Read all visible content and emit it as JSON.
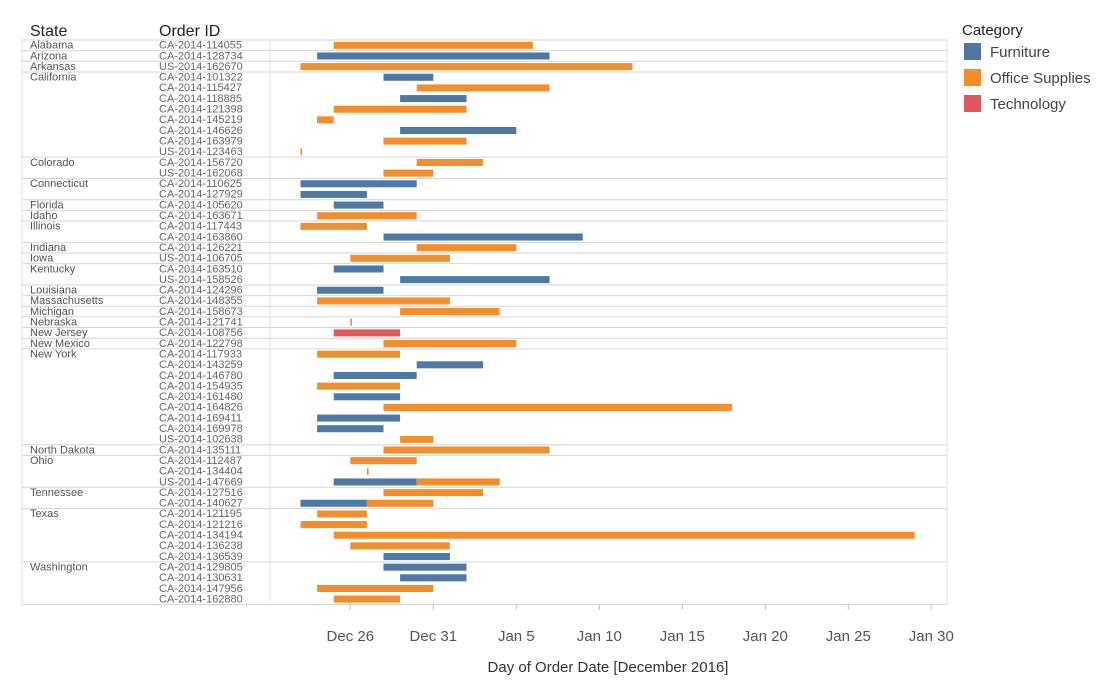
{
  "chart_data": {
    "type": "gantt",
    "headers": {
      "state": "State",
      "order": "Order ID"
    },
    "xlabel": "Day of Order Date [December 2016]",
    "x_ticks": [
      {
        "label": "Dec 26",
        "day": 26
      },
      {
        "label": "Dec 31",
        "day": 31
      },
      {
        "label": "Jan 5",
        "day": 36
      },
      {
        "label": "Jan 10",
        "day": 41
      },
      {
        "label": "Jan 15",
        "day": 46
      },
      {
        "label": "Jan 20",
        "day": 51
      },
      {
        "label": "Jan 25",
        "day": 56
      },
      {
        "label": "Jan 30",
        "day": 61
      }
    ],
    "xlim": [
      21.5,
      62
    ],
    "legend": {
      "title": "Category",
      "items": [
        {
          "name": "Furniture",
          "color": "#4e79a7"
        },
        {
          "name": "Office Supplies",
          "color": "#f28e2b"
        },
        {
          "name": "Technology",
          "color": "#e15759"
        }
      ]
    },
    "groups": [
      {
        "state": "Alabama",
        "rows": [
          {
            "order": "CA-2014-114055",
            "segments": [
              {
                "category": "Office Supplies",
                "start": 25,
                "end": 37
              }
            ]
          }
        ]
      },
      {
        "state": "Arizona",
        "rows": [
          {
            "order": "CA-2014-128734",
            "segments": [
              {
                "category": "Furniture",
                "start": 24,
                "end": 38
              }
            ]
          }
        ]
      },
      {
        "state": "Arkansas",
        "rows": [
          {
            "order": "US-2014-162670",
            "segments": [
              {
                "category": "Office Supplies",
                "start": 23,
                "end": 43
              }
            ]
          }
        ]
      },
      {
        "state": "California",
        "rows": [
          {
            "order": "CA-2014-101322",
            "segments": [
              {
                "category": "Furniture",
                "start": 28,
                "end": 31
              }
            ]
          },
          {
            "order": "CA-2014-115427",
            "segments": [
              {
                "category": "Office Supplies",
                "start": 30,
                "end": 38
              }
            ]
          },
          {
            "order": "CA-2014-118885",
            "segments": [
              {
                "category": "Furniture",
                "start": 29,
                "end": 33
              }
            ]
          },
          {
            "order": "CA-2014-121398",
            "segments": [
              {
                "category": "Office Supplies",
                "start": 25,
                "end": 33
              }
            ]
          },
          {
            "order": "CA-2014-145219",
            "segments": [
              {
                "category": "Office Supplies",
                "start": 24,
                "end": 25
              }
            ]
          },
          {
            "order": "CA-2014-146626",
            "segments": [
              {
                "category": "Furniture",
                "start": 29,
                "end": 36
              }
            ]
          },
          {
            "order": "CA-2014-163979",
            "segments": [
              {
                "category": "Office Supplies",
                "start": 28,
                "end": 33
              }
            ]
          },
          {
            "order": "US-2014-123463",
            "segments": [
              {
                "category": "Office Supplies",
                "start": 23,
                "end": 23.1
              }
            ]
          }
        ]
      },
      {
        "state": "Colorado",
        "rows": [
          {
            "order": "CA-2014-156720",
            "segments": [
              {
                "category": "Office Supplies",
                "start": 30,
                "end": 34
              }
            ]
          },
          {
            "order": "US-2014-162068",
            "segments": [
              {
                "category": "Office Supplies",
                "start": 28,
                "end": 31
              }
            ]
          }
        ]
      },
      {
        "state": "Connecticut",
        "rows": [
          {
            "order": "CA-2014-110625",
            "segments": [
              {
                "category": "Furniture",
                "start": 23,
                "end": 30
              }
            ]
          },
          {
            "order": "CA-2014-127929",
            "segments": [
              {
                "category": "Furniture",
                "start": 23,
                "end": 27
              }
            ]
          }
        ]
      },
      {
        "state": "Florida",
        "rows": [
          {
            "order": "CA-2014-105620",
            "segments": [
              {
                "category": "Furniture",
                "start": 25,
                "end": 28
              }
            ]
          }
        ]
      },
      {
        "state": "Idaho",
        "rows": [
          {
            "order": "CA-2014-163671",
            "segments": [
              {
                "category": "Office Supplies",
                "start": 24,
                "end": 30
              }
            ]
          }
        ]
      },
      {
        "state": "Illinois",
        "rows": [
          {
            "order": "CA-2014-117443",
            "segments": [
              {
                "category": "Office Supplies",
                "start": 23,
                "end": 27
              }
            ]
          },
          {
            "order": "CA-2014-163860",
            "segments": [
              {
                "category": "Furniture",
                "start": 28,
                "end": 40
              }
            ]
          }
        ]
      },
      {
        "state": "Indiana",
        "rows": [
          {
            "order": "CA-2014-126221",
            "segments": [
              {
                "category": "Office Supplies",
                "start": 30,
                "end": 36
              }
            ]
          }
        ]
      },
      {
        "state": "Iowa",
        "rows": [
          {
            "order": "US-2014-106705",
            "segments": [
              {
                "category": "Office Supplies",
                "start": 26,
                "end": 32
              }
            ]
          }
        ]
      },
      {
        "state": "Kentucky",
        "rows": [
          {
            "order": "CA-2014-163510",
            "segments": [
              {
                "category": "Furniture",
                "start": 25,
                "end": 28
              }
            ]
          },
          {
            "order": "US-2014-158526",
            "segments": [
              {
                "category": "Furniture",
                "start": 29,
                "end": 38
              }
            ]
          }
        ]
      },
      {
        "state": "Louisiana",
        "rows": [
          {
            "order": "CA-2014-124296",
            "segments": [
              {
                "category": "Furniture",
                "start": 24,
                "end": 28
              }
            ]
          }
        ]
      },
      {
        "state": "Massachusetts",
        "rows": [
          {
            "order": "CA-2014-148355",
            "segments": [
              {
                "category": "Office Supplies",
                "start": 24,
                "end": 32
              }
            ]
          }
        ]
      },
      {
        "state": "Michigan",
        "rows": [
          {
            "order": "CA-2014-158673",
            "segments": [
              {
                "category": "Office Supplies",
                "start": 29,
                "end": 35
              }
            ]
          }
        ]
      },
      {
        "state": "Nebraska",
        "rows": [
          {
            "order": "CA-2014-121741",
            "segments": [
              {
                "category": "Office Supplies",
                "start": 26,
                "end": 26.1
              }
            ]
          }
        ]
      },
      {
        "state": "New Jersey",
        "rows": [
          {
            "order": "CA-2014-108756",
            "segments": [
              {
                "category": "Technology",
                "start": 25,
                "end": 29
              }
            ]
          }
        ]
      },
      {
        "state": "New Mexico",
        "rows": [
          {
            "order": "CA-2014-122798",
            "segments": [
              {
                "category": "Office Supplies",
                "start": 28,
                "end": 36
              }
            ]
          }
        ]
      },
      {
        "state": "New York",
        "rows": [
          {
            "order": "CA-2014-117933",
            "segments": [
              {
                "category": "Office Supplies",
                "start": 24,
                "end": 29
              }
            ]
          },
          {
            "order": "CA-2014-143259",
            "segments": [
              {
                "category": "Furniture",
                "start": 30,
                "end": 34
              }
            ]
          },
          {
            "order": "CA-2014-146780",
            "segments": [
              {
                "category": "Furniture",
                "start": 25,
                "end": 30
              }
            ]
          },
          {
            "order": "CA-2014-154935",
            "segments": [
              {
                "category": "Office Supplies",
                "start": 24,
                "end": 29
              }
            ]
          },
          {
            "order": "CA-2014-161480",
            "segments": [
              {
                "category": "Furniture",
                "start": 25,
                "end": 29
              }
            ]
          },
          {
            "order": "CA-2014-164826",
            "segments": [
              {
                "category": "Office Supplies",
                "start": 28,
                "end": 49
              }
            ]
          },
          {
            "order": "CA-2014-169411",
            "segments": [
              {
                "category": "Furniture",
                "start": 24,
                "end": 29
              }
            ]
          },
          {
            "order": "CA-2014-169978",
            "segments": [
              {
                "category": "Furniture",
                "start": 24,
                "end": 28
              }
            ]
          },
          {
            "order": "US-2014-102638",
            "segments": [
              {
                "category": "Office Supplies",
                "start": 29,
                "end": 31
              }
            ]
          }
        ]
      },
      {
        "state": "North Dakota",
        "rows": [
          {
            "order": "CA-2014-135111",
            "segments": [
              {
                "category": "Office Supplies",
                "start": 28,
                "end": 38
              }
            ]
          }
        ]
      },
      {
        "state": "Ohio",
        "rows": [
          {
            "order": "CA-2014-112487",
            "segments": [
              {
                "category": "Office Supplies",
                "start": 26,
                "end": 30
              }
            ]
          },
          {
            "order": "CA-2014-134404",
            "segments": [
              {
                "category": "Office Supplies",
                "start": 27,
                "end": 27.1
              }
            ]
          },
          {
            "order": "US-2014-147669",
            "segments": [
              {
                "category": "Furniture",
                "start": 25,
                "end": 30
              },
              {
                "category": "Office Supplies",
                "start": 30,
                "end": 35
              }
            ]
          }
        ]
      },
      {
        "state": "Tennessee",
        "rows": [
          {
            "order": "CA-2014-127516",
            "segments": [
              {
                "category": "Office Supplies",
                "start": 28,
                "end": 34
              }
            ]
          },
          {
            "order": "CA-2014-140627",
            "segments": [
              {
                "category": "Furniture",
                "start": 23,
                "end": 27
              },
              {
                "category": "Office Supplies",
                "start": 27,
                "end": 31
              }
            ]
          }
        ]
      },
      {
        "state": "Texas",
        "rows": [
          {
            "order": "CA-2014-121195",
            "segments": [
              {
                "category": "Office Supplies",
                "start": 24,
                "end": 27
              }
            ]
          },
          {
            "order": "CA-2014-121216",
            "segments": [
              {
                "category": "Office Supplies",
                "start": 23,
                "end": 27
              }
            ]
          },
          {
            "order": "CA-2014-134194",
            "segments": [
              {
                "category": "Office Supplies",
                "start": 25,
                "end": 60
              }
            ]
          },
          {
            "order": "CA-2014-136238",
            "segments": [
              {
                "category": "Office Supplies",
                "start": 26,
                "end": 32
              }
            ]
          },
          {
            "order": "CA-2014-136539",
            "segments": [
              {
                "category": "Furniture",
                "start": 28,
                "end": 32
              }
            ]
          }
        ]
      },
      {
        "state": "Washington",
        "rows": [
          {
            "order": "CA-2014-129805",
            "segments": [
              {
                "category": "Furniture",
                "start": 28,
                "end": 33
              }
            ]
          },
          {
            "order": "CA-2014-130631",
            "segments": [
              {
                "category": "Furniture",
                "start": 29,
                "end": 33
              }
            ]
          },
          {
            "order": "CA-2014-147956",
            "segments": [
              {
                "category": "Office Supplies",
                "start": 24,
                "end": 31
              }
            ]
          },
          {
            "order": "CA-2014-162880",
            "segments": [
              {
                "category": "Office Supplies",
                "start": 25,
                "end": 29
              }
            ]
          }
        ]
      }
    ]
  }
}
